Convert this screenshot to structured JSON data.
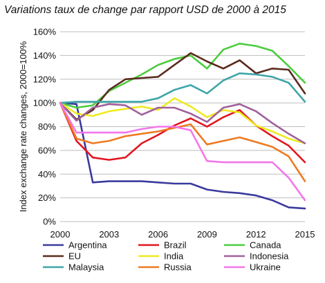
{
  "chart_data": {
    "type": "line",
    "title": "Variations taux de change par rapport USD de 2000 à 2015",
    "ylabel": "Index exchange rate changes, 2000=100%",
    "xlabel": "",
    "x": [
      2000,
      2001,
      2002,
      2003,
      2004,
      2005,
      2006,
      2007,
      2008,
      2009,
      2010,
      2011,
      2012,
      2013,
      2014,
      2015
    ],
    "xticks": [
      2000,
      2003,
      2006,
      2009,
      2012,
      2015
    ],
    "xtick_labels": [
      "2000",
      "2003",
      "2006",
      "2009",
      "2012",
      "2015"
    ],
    "yticks": [
      0,
      20,
      40,
      60,
      80,
      100,
      120,
      140,
      160
    ],
    "ytick_labels": [
      "0%",
      "20%",
      "40%",
      "60%",
      "80%",
      "100%",
      "120%",
      "140%",
      "160%"
    ],
    "xlim": [
      2000,
      2015
    ],
    "ylim": [
      0,
      160
    ],
    "grid": "horizontal",
    "legend_position": "bottom",
    "series": [
      {
        "name": "Argentina",
        "color": "#3a3a9e",
        "values": [
          100,
          99,
          33,
          34,
          34,
          34,
          33,
          32,
          32,
          27,
          25,
          24,
          22,
          18,
          12,
          11
        ]
      },
      {
        "name": "Brazil",
        "color": "#e3141f",
        "values": [
          100,
          68,
          54,
          52,
          54,
          66,
          73,
          81,
          87,
          80,
          88,
          94,
          81,
          72,
          64,
          50
        ]
      },
      {
        "name": "Canada",
        "color": "#4ccc3e",
        "values": [
          100,
          96,
          98,
          110,
          117,
          124,
          132,
          137,
          140,
          129,
          145,
          150,
          148,
          144,
          131,
          117
        ]
      },
      {
        "name": "EU",
        "color": "#5a2a1e",
        "values": [
          100,
          86,
          94,
          111,
          120,
          121,
          122,
          132,
          142,
          135,
          129,
          136,
          125,
          129,
          128,
          108
        ]
      },
      {
        "name": "India",
        "color": "#eeea1f",
        "values": [
          100,
          91,
          89,
          93,
          95,
          97,
          94,
          104,
          97,
          88,
          94,
          92,
          81,
          76,
          70,
          66
        ]
      },
      {
        "name": "Indonesia",
        "color": "#a0609b",
        "values": [
          100,
          85,
          96,
          99,
          98,
          90,
          96,
          96,
          91,
          84,
          96,
          99,
          93,
          83,
          74,
          66
        ]
      },
      {
        "name": "Malaysia",
        "color": "#3ea5a8",
        "values": [
          100,
          101,
          101,
          101,
          101,
          101,
          104,
          111,
          115,
          108,
          119,
          125,
          124,
          122,
          117,
          101
        ]
      },
      {
        "name": "Russia",
        "color": "#ee7a22",
        "values": [
          100,
          70,
          66,
          68,
          72,
          74,
          76,
          79,
          82,
          65,
          68,
          71,
          67,
          63,
          55,
          34
        ]
      },
      {
        "name": "Ukraine",
        "color": "#f376ea",
        "values": [
          100,
          75,
          75,
          75,
          75,
          78,
          80,
          80,
          77,
          51,
          50,
          50,
          50,
          50,
          37,
          18
        ]
      }
    ]
  }
}
